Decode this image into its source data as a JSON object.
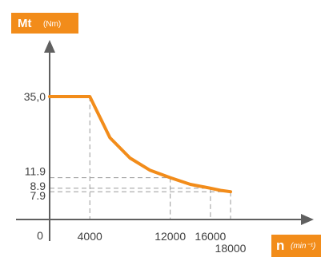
{
  "chart_data": {
    "type": "line",
    "title": "",
    "ylabel": "Mt",
    "ylabel_unit": "(Nm)",
    "xlabel": "n",
    "xlabel_unit": "(min⁻¹)",
    "xlim": [
      0,
      21500
    ],
    "ylim": [
      0,
      48
    ],
    "x_ticks": [
      {
        "value": 0,
        "label": "0"
      },
      {
        "value": 4000,
        "label": "4000"
      },
      {
        "value": 12000,
        "label": "12000"
      },
      {
        "value": 16000,
        "label": "16000"
      },
      {
        "value": 18000,
        "label": "18000"
      }
    ],
    "y_ticks": [
      {
        "value": 35.0,
        "label": "35,0"
      },
      {
        "value": 11.9,
        "label": "11.9"
      },
      {
        "value": 8.9,
        "label": "8.9"
      },
      {
        "value": 7.9,
        "label": "7.9"
      }
    ],
    "series": [
      {
        "color": "#f28c1a",
        "x": [
          0,
          4000,
          6000,
          8000,
          10000,
          12000,
          14000,
          16000,
          17000,
          18000
        ],
        "y": [
          35.0,
          35.0,
          23.3,
          17.5,
          14.0,
          11.9,
          10.0,
          8.9,
          8.3,
          7.9
        ]
      }
    ],
    "reference_lines": [
      {
        "x": 4000,
        "y": 35.0
      },
      {
        "x": 12000,
        "y": 11.9
      },
      {
        "x": 16000,
        "y": 8.9
      },
      {
        "x": 18000,
        "y": 7.9
      }
    ],
    "grid": false,
    "legend": "none",
    "colors": {
      "accent": "#f28c1a",
      "axis": "#606060",
      "guide": "#9a9a9a"
    }
  }
}
